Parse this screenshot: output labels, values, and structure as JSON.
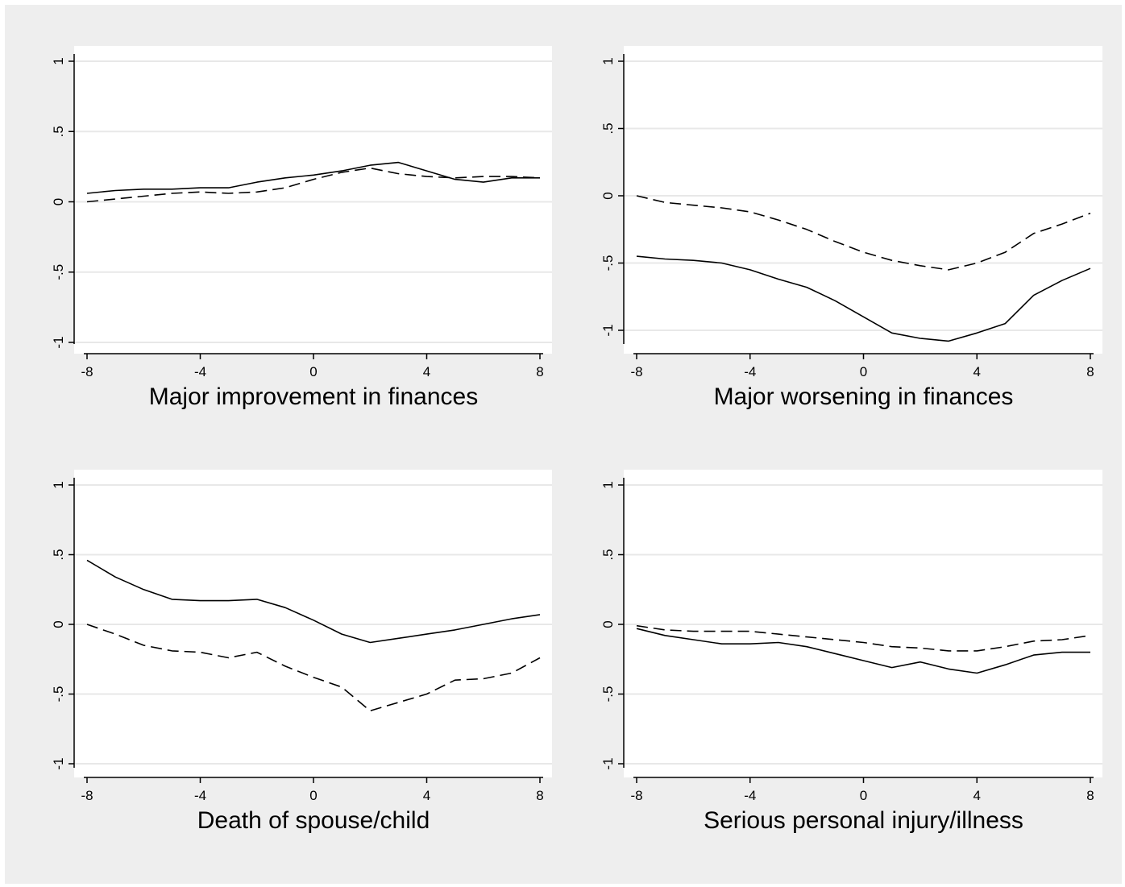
{
  "chart_data": [
    {
      "type": "line",
      "title": "Major improvement in finances",
      "x": [
        -8,
        -7,
        -6,
        -5,
        -4,
        -3,
        -2,
        -1,
        0,
        1,
        2,
        3,
        4,
        5,
        6,
        7,
        8
      ],
      "series": [
        {
          "style": "solid",
          "values": [
            0.06,
            0.08,
            0.09,
            0.09,
            0.1,
            0.1,
            0.14,
            0.17,
            0.19,
            0.22,
            0.26,
            0.28,
            0.22,
            0.16,
            0.14,
            0.17,
            0.17
          ]
        },
        {
          "style": "dashed",
          "values": [
            0.0,
            0.02,
            0.04,
            0.06,
            0.07,
            0.06,
            0.07,
            0.1,
            0.16,
            0.21,
            0.24,
            0.2,
            0.18,
            0.17,
            0.18,
            0.18,
            0.17
          ]
        }
      ],
      "xticks": [
        -8,
        -4,
        0,
        4,
        8
      ],
      "yticks": [
        1,
        0.5,
        0,
        -0.5,
        -1
      ],
      "ytick_labels": [
        "1",
        ".5",
        "0",
        "-.5",
        "-1"
      ],
      "xlim": [
        -8.5,
        8.5
      ],
      "ylim": [
        -1.1,
        1.1
      ],
      "grid": true
    },
    {
      "type": "line",
      "title": "Major worsening in finances",
      "x": [
        -8,
        -7,
        -6,
        -5,
        -4,
        -3,
        -2,
        -1,
        0,
        1,
        2,
        3,
        4,
        5,
        6,
        7,
        8
      ],
      "series": [
        {
          "style": "solid",
          "values": [
            -0.45,
            -0.47,
            -0.48,
            -0.5,
            -0.55,
            -0.62,
            -0.68,
            -0.78,
            -0.9,
            -1.02,
            -1.06,
            -1.08,
            -1.02,
            -0.95,
            -0.74,
            -0.63,
            -0.54
          ]
        },
        {
          "style": "dashed",
          "values": [
            0.0,
            -0.05,
            -0.07,
            -0.09,
            -0.12,
            -0.18,
            -0.25,
            -0.34,
            -0.42,
            -0.48,
            -0.52,
            -0.55,
            -0.5,
            -0.42,
            -0.28,
            -0.21,
            -0.13
          ]
        }
      ],
      "xticks": [
        -8,
        -4,
        0,
        4,
        8
      ],
      "yticks": [
        1,
        0.5,
        0,
        -0.5,
        -1
      ],
      "ytick_labels": [
        "1",
        ".5",
        "0",
        "-.5",
        "-1"
      ],
      "xlim": [
        -8.5,
        8.5
      ],
      "ylim": [
        -1.2,
        1.1
      ],
      "grid": true
    },
    {
      "type": "line",
      "title": "Death of spouse/child",
      "x": [
        -8,
        -7,
        -6,
        -5,
        -4,
        -3,
        -2,
        -1,
        0,
        1,
        2,
        3,
        4,
        5,
        6,
        7,
        8
      ],
      "series": [
        {
          "style": "solid",
          "values": [
            0.46,
            0.34,
            0.25,
            0.18,
            0.17,
            0.17,
            0.18,
            0.12,
            0.03,
            -0.07,
            -0.13,
            -0.1,
            -0.07,
            -0.04,
            0.0,
            0.04,
            0.07
          ]
        },
        {
          "style": "dashed",
          "values": [
            0.0,
            -0.07,
            -0.15,
            -0.19,
            -0.2,
            -0.24,
            -0.2,
            -0.3,
            -0.38,
            -0.45,
            -0.62,
            -0.56,
            -0.5,
            -0.4,
            -0.39,
            -0.35,
            -0.24
          ]
        }
      ],
      "xticks": [
        -8,
        -4,
        0,
        4,
        8
      ],
      "yticks": [
        1,
        0.5,
        0,
        -0.5,
        -1
      ],
      "ytick_labels": [
        "1",
        ".5",
        "0",
        "-.5",
        "-1"
      ],
      "xlim": [
        -8.5,
        8.5
      ],
      "ylim": [
        -1.1,
        1.1
      ],
      "grid": true
    },
    {
      "type": "line",
      "title": "Serious personal injury/illness",
      "x": [
        -8,
        -7,
        -6,
        -5,
        -4,
        -3,
        -2,
        -1,
        0,
        1,
        2,
        3,
        4,
        5,
        6,
        7,
        8
      ],
      "series": [
        {
          "style": "solid",
          "values": [
            -0.03,
            -0.08,
            -0.11,
            -0.14,
            -0.14,
            -0.13,
            -0.16,
            -0.21,
            -0.26,
            -0.31,
            -0.27,
            -0.32,
            -0.35,
            -0.29,
            -0.22,
            -0.2,
            -0.2
          ]
        },
        {
          "style": "dashed",
          "values": [
            -0.01,
            -0.04,
            -0.05,
            -0.05,
            -0.05,
            -0.07,
            -0.09,
            -0.11,
            -0.13,
            -0.16,
            -0.17,
            -0.19,
            -0.19,
            -0.16,
            -0.12,
            -0.11,
            -0.08
          ]
        }
      ],
      "xticks": [
        -8,
        -4,
        0,
        4,
        8
      ],
      "yticks": [
        1,
        0.5,
        0,
        -0.5,
        -1
      ],
      "ytick_labels": [
        "1",
        ".5",
        "0",
        "-.5",
        "-1"
      ],
      "xlim": [
        -8.5,
        8.5
      ],
      "ylim": [
        -1.1,
        1.1
      ],
      "grid": true
    }
  ],
  "colors": {
    "figure_background": "#eeeeee",
    "plot_background": "#ffffff",
    "gridline": "#e8e8e8",
    "line": "#000000"
  }
}
